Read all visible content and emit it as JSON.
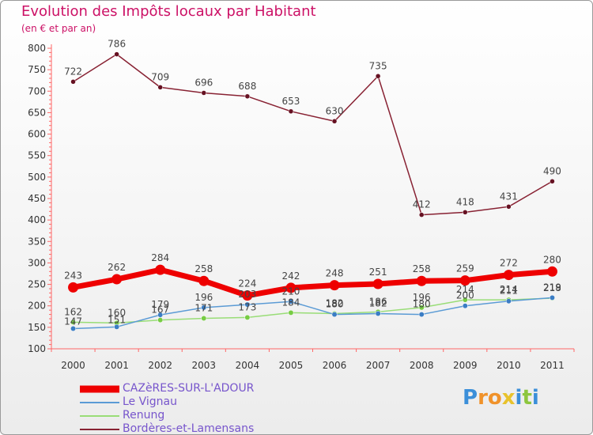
{
  "chart_data": {
    "type": "line",
    "title": "Evolution des Impôts locaux par Habitant",
    "subtitle": "(en € et par an)",
    "xlabel": "",
    "ylabel": "",
    "ylim": [
      100,
      800
    ],
    "yticks": [
      100,
      150,
      200,
      250,
      300,
      350,
      400,
      450,
      500,
      550,
      600,
      650,
      700,
      750,
      800
    ],
    "x": [
      "2000",
      "2001",
      "2002",
      "2003",
      "2004",
      "2005",
      "2006",
      "2007",
      "2008",
      "2009",
      "2010",
      "2011"
    ],
    "grid": false,
    "legend_position": "bottom-left",
    "series": [
      {
        "name": "CAZèRES-SUR-L'ADOUR",
        "color": "#ee0000",
        "values": [
          243,
          262,
          284,
          258,
          224,
          242,
          248,
          251,
          258,
          259,
          272,
          280
        ],
        "labels": [
          "243",
          "262",
          "284",
          "258",
          "224",
          "242",
          "248",
          "251",
          "258",
          "259",
          "272",
          "280"
        ]
      },
      {
        "name": "Le Vignau",
        "color": "#5b9bd5",
        "marker_color": "#3b7dc4",
        "values": [
          147,
          151,
          179,
          196,
          203,
          210,
          180,
          182,
          180,
          200,
          211,
          219
        ],
        "labels": [
          "147",
          "151",
          "179",
          "196",
          "203",
          "210",
          "180",
          "182",
          "180",
          "200",
          "211",
          "219"
        ]
      },
      {
        "name": "Renung",
        "color": "#99dd77",
        "marker_color": "#77cc44",
        "values": [
          162,
          160,
          167,
          171,
          173,
          184,
          182,
          186,
          196,
          214,
          214,
          218
        ],
        "labels": [
          "162",
          "160",
          "167",
          "171",
          "173",
          "184",
          "182",
          "186",
          "196",
          "214",
          "214",
          "218"
        ]
      },
      {
        "name": "Bordères-et-Lamensans",
        "color": "#882233",
        "marker_color": "#661122",
        "values": [
          722,
          786,
          709,
          696,
          688,
          653,
          630,
          735,
          412,
          418,
          431,
          490
        ],
        "labels": [
          "722",
          "786",
          "709",
          "696",
          "688",
          "653",
          "630",
          "735",
          "412",
          "418",
          "431",
          "490"
        ]
      }
    ]
  },
  "logo": {
    "text_parts": [
      "P",
      "r",
      "o",
      "x",
      "i",
      "t",
      "i"
    ]
  }
}
